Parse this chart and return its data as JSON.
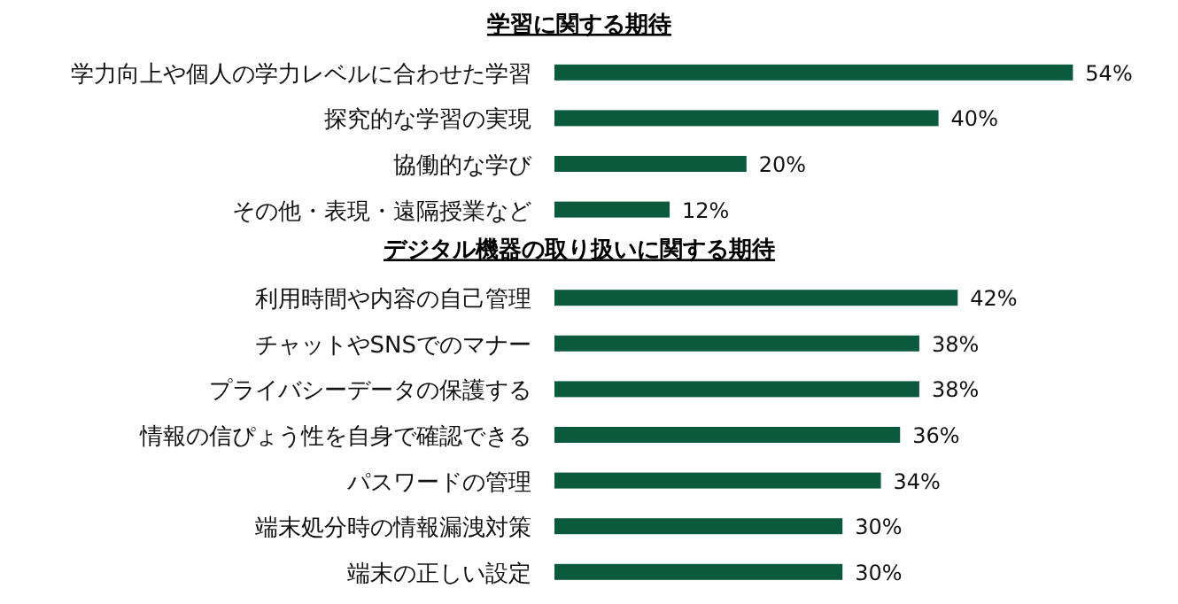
{
  "chart_data": [
    {
      "type": "bar",
      "orientation": "horizontal",
      "title": "学習に関する期待",
      "categories": [
        "学力向上や個人の学力レベルに合わせた学習",
        "探究的な学習の実現",
        "協働的な学び",
        "その他・表現・遠隔授業など"
      ],
      "color": "#0b5a3e",
      "values": [
        54,
        40,
        20,
        12
      ],
      "value_labels": [
        "54%",
        "40%",
        "20%",
        "12%"
      ]
    },
    {
      "type": "bar",
      "orientation": "horizontal",
      "title": "デジタル機器の取り扱いに関する期待",
      "categories": [
        "利用時間や内容の自己管理",
        "チャットやSNSでのマナー",
        "プライバシーデータの保護する",
        "情報の信ぴょう性を自身で確認できる",
        "パスワードの管理",
        "端末処分時の情報漏洩対策",
        "端末の正しい設定"
      ],
      "color": "#0b5a3e",
      "values": [
        42,
        38,
        38,
        36,
        34,
        30,
        30
      ],
      "value_labels": [
        "42%",
        "38%",
        "38%",
        "36%",
        "34%",
        "30%",
        "30%"
      ]
    }
  ]
}
